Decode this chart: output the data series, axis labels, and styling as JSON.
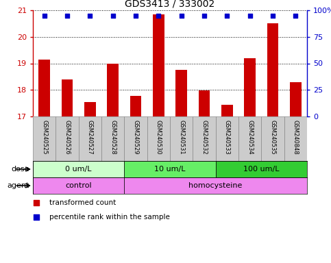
{
  "title": "GDS3413 / 333002",
  "samples": [
    "GSM240525",
    "GSM240526",
    "GSM240527",
    "GSM240528",
    "GSM240529",
    "GSM240530",
    "GSM240531",
    "GSM240532",
    "GSM240533",
    "GSM240534",
    "GSM240535",
    "GSM240848"
  ],
  "bar_values": [
    19.15,
    18.4,
    17.55,
    19.0,
    17.78,
    20.85,
    18.75,
    17.98,
    17.45,
    19.2,
    20.5,
    18.28
  ],
  "percentile_values": [
    95,
    95,
    95,
    95,
    95,
    95,
    95,
    95,
    95,
    95,
    95,
    95
  ],
  "ylim_left": [
    17,
    21
  ],
  "ylim_right": [
    0,
    100
  ],
  "yticks_left": [
    17,
    18,
    19,
    20,
    21
  ],
  "yticks_right": [
    0,
    25,
    50,
    75,
    100
  ],
  "bar_color": "#cc0000",
  "dot_color": "#0000cc",
  "dose_groups": [
    {
      "label": "0 um/L",
      "start": 0,
      "end": 4,
      "color": "#ccffcc"
    },
    {
      "label": "10 um/L",
      "start": 4,
      "end": 8,
      "color": "#66ee66"
    },
    {
      "label": "100 um/L",
      "start": 8,
      "end": 12,
      "color": "#33cc33"
    }
  ],
  "agent_groups": [
    {
      "label": "control",
      "start": 0,
      "end": 4,
      "color": "#ee88ee"
    },
    {
      "label": "homocysteine",
      "start": 4,
      "end": 12,
      "color": "#ee88ee"
    }
  ],
  "dose_label": "dose",
  "agent_label": "agent",
  "legend_bar_label": "transformed count",
  "legend_dot_label": "percentile rank within the sample",
  "tick_area_color": "#cccccc",
  "background_color": "#ffffff",
  "right_tick_labels": [
    "0",
    "25",
    "50",
    "75",
    "100%"
  ]
}
